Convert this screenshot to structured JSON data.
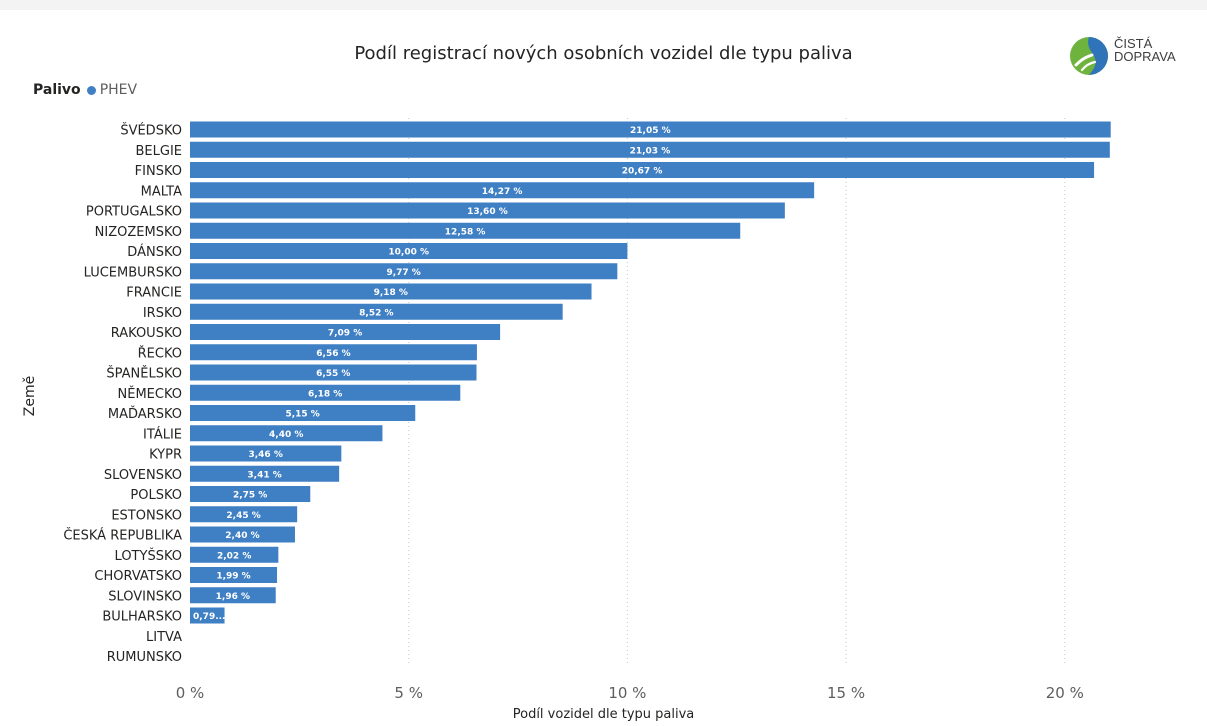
{
  "title": "Podíl registrací nových osobních vozidel dle typu paliva",
  "logo": {
    "line1": "ČISTÁ",
    "line2": "DOPRAVA"
  },
  "legend": {
    "title": "Palivo",
    "items": [
      {
        "name": "PHEV",
        "color": "#3f7fc4"
      }
    ]
  },
  "colors": {
    "bar": "#3f7fc4",
    "grid": "#c8c8c8",
    "axis_text": "#605e5c",
    "label": "#ffffff"
  },
  "chart_data": {
    "type": "bar",
    "orientation": "horizontal",
    "title": "Podíl registrací nových osobních vozidel dle typu paliva",
    "xlabel": "Podíl vozidel dle typu paliva",
    "ylabel": "Země",
    "xlim": [
      0,
      22.2
    ],
    "xticks": [
      0,
      5,
      10,
      15,
      20
    ],
    "xtick_labels": [
      "0 %",
      "5 %",
      "10 %",
      "15 %",
      "20 %"
    ],
    "grid": true,
    "legend_position": "top-left",
    "categories": [
      "ŠVÉDSKO",
      "BELGIE",
      "FINSKO",
      "MALTA",
      "PORTUGALSKO",
      "NIZOZEMSKO",
      "DÁNSKO",
      "LUCEMBURSKO",
      "FRANCIE",
      "IRSKO",
      "RAKOUSKO",
      "ŘECKO",
      "ŠPANĚLSKO",
      "NĚMECKO",
      "MAĎARSKO",
      "ITÁLIE",
      "KYPR",
      "SLOVENSKO",
      "POLSKO",
      "ESTONSKO",
      "ČESKÁ REPUBLIKA",
      "LOTYŠSKO",
      "CHORVATSKO",
      "SLOVINSKO",
      "BULHARSKO",
      "LITVA",
      "RUMUNSKO"
    ],
    "series": [
      {
        "name": "PHEV",
        "values": [
          21.05,
          21.03,
          20.67,
          14.27,
          13.6,
          12.58,
          10.0,
          9.77,
          9.18,
          8.52,
          7.09,
          6.56,
          6.55,
          6.18,
          5.15,
          4.4,
          3.46,
          3.41,
          2.75,
          2.45,
          2.4,
          2.02,
          1.99,
          1.96,
          0.79,
          null,
          null
        ],
        "data_labels": [
          "21,05 %",
          "21,03 %",
          "20,67 %",
          "14,27 %",
          "13,60 %",
          "12,58 %",
          "10,00 %",
          "9,77 %",
          "9,18 %",
          "8,52 %",
          "7,09 %",
          "6,56 %",
          "6,55 %",
          "6,18 %",
          "5,15 %",
          "4,40 %",
          "3,46 %",
          "3,41 %",
          "2,75 %",
          "2,45 %",
          "2,40 %",
          "2,02 %",
          "1,99 %",
          "1,96 %",
          "0,79...",
          "",
          ""
        ]
      }
    ]
  }
}
